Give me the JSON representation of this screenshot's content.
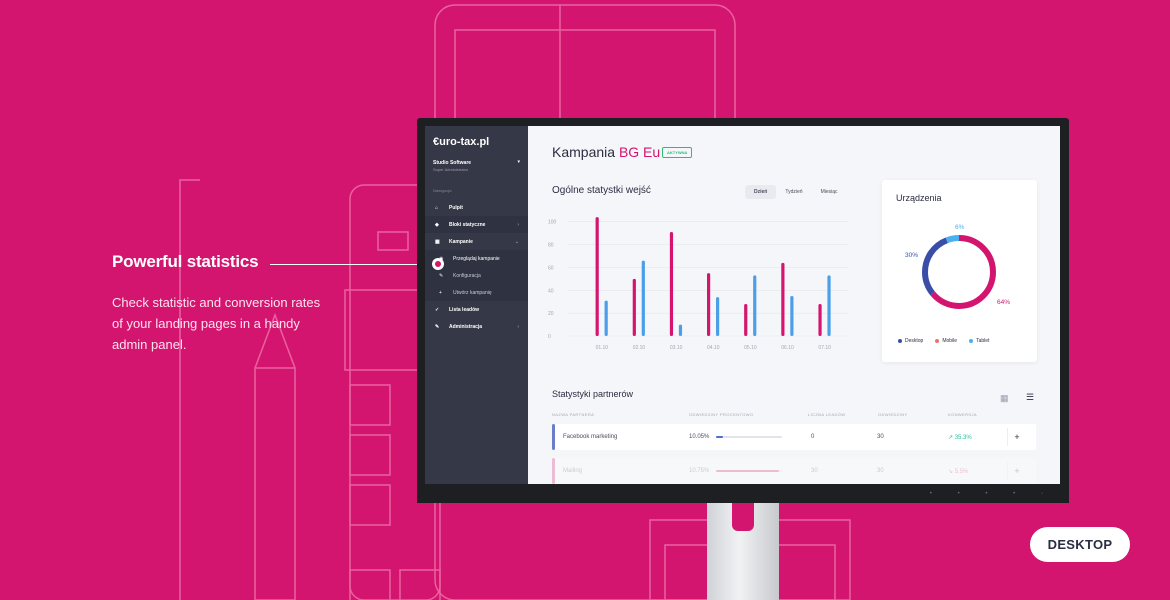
{
  "feature": {
    "title": "Powerful statistics",
    "description": "Check statistic and conversion rates of your landing pages in a handy admin panel."
  },
  "device_label": "DESKTOP",
  "sidebar": {
    "logo": "€uro-tax.pl",
    "user_name": "Studio Software",
    "user_role": "Super Administrator",
    "nav_heading": "Nawigacja",
    "items": [
      {
        "label": "Pulpit",
        "icon": "home-icon"
      },
      {
        "label": "Bloki statyczne",
        "icon": "cube-icon"
      },
      {
        "label": "Kampanie",
        "icon": "table-icon"
      },
      {
        "label": "Przeglądaj kampanie",
        "icon": "eye-icon"
      },
      {
        "label": "Konfiguracja",
        "icon": "wrench-icon"
      },
      {
        "label": "Utwórz kampanię",
        "icon": "plus-icon"
      },
      {
        "label": "Lista leadów",
        "icon": "check-icon"
      },
      {
        "label": "Administracja",
        "icon": "wrench-icon"
      }
    ]
  },
  "page": {
    "title_prefix": "Kampania",
    "title_accent": "BG Eu",
    "status_badge": "AKTYWNA"
  },
  "stats": {
    "title": "Ogólne statystki wejść",
    "tabs": [
      "Dzień",
      "Tydzień",
      "Miesiąc"
    ],
    "selected_tab": "Dzień"
  },
  "devices": {
    "title": "Urządzenia",
    "legend": [
      "Desktop",
      "Mobile",
      "Tablet"
    ],
    "labels": [
      "6%",
      "30%",
      "64%"
    ]
  },
  "partners": {
    "title": "Statystyki partnerów",
    "columns": [
      "NAZWA PARTNERA",
      "ODWIEDZINY PROCENTOWO",
      "LICZBA LEADÓW",
      "ODWIEDZINY",
      "KONWERSJA"
    ],
    "rows": [
      {
        "name": "Facebook marketing",
        "percent": "10.05%",
        "progress": 0.1,
        "leads": "0",
        "visits": "30",
        "conversion": "35.3%"
      },
      {
        "name": "Mailing",
        "percent": "10.75%",
        "progress": 0.95,
        "leads": "30",
        "visits": "30",
        "conversion": "5.5%"
      }
    ],
    "plus": "+"
  },
  "colors": {
    "background": "#d4156f",
    "accent": "#d4156f",
    "secondary": "#4a9fe8",
    "desktop": "#3a4ea8",
    "mobile": "#f0706a",
    "tablet": "#4ab0f0",
    "sidebar": "#353847"
  },
  "chart_data": {
    "type": "bar",
    "categories": [
      "01.10",
      "02.10",
      "03.10",
      "04.10",
      "05.10",
      "06.10",
      "07.10"
    ],
    "series": [
      {
        "values": [
          104,
          50,
          91,
          55,
          28,
          64,
          28
        ]
      },
      {
        "values": [
          31,
          66,
          10,
          34,
          53,
          35,
          53
        ]
      }
    ],
    "yticks": [
      "100",
      "80",
      "60",
      "40",
      "20",
      "0"
    ],
    "ylim": [
      0,
      105
    ],
    "grid": true
  }
}
